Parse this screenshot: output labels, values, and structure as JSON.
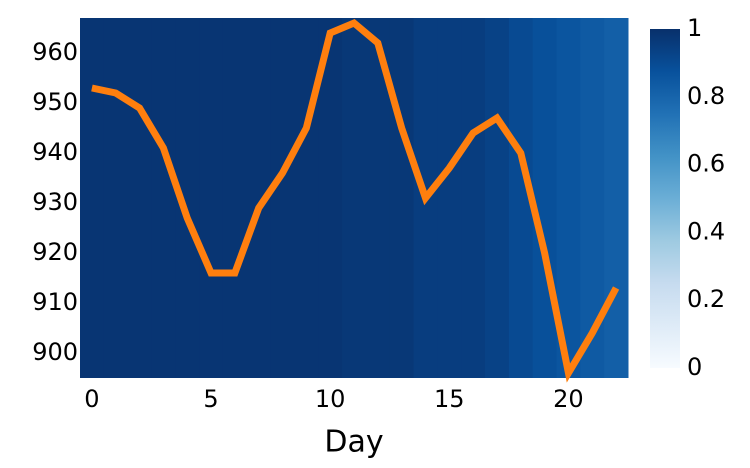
{
  "chart_data": {
    "type": "line",
    "x_label": "Day",
    "x": [
      0,
      1,
      2,
      3,
      4,
      5,
      6,
      7,
      8,
      9,
      10,
      11,
      12,
      13,
      14,
      15,
      16,
      17,
      18,
      19,
      20,
      21,
      22
    ],
    "series": [
      {
        "color": "#ff7f0e",
        "values": [
          953,
          952,
          949,
          941,
          927,
          916,
          916,
          929,
          936,
          945,
          964,
          966,
          962,
          945,
          931,
          937,
          944,
          947,
          940,
          920,
          896,
          904,
          913
        ]
      }
    ],
    "heatmap_values": [
      0.98,
      0.98,
      0.98,
      0.98,
      0.98,
      0.98,
      0.98,
      0.98,
      0.98,
      0.98,
      0.98,
      0.97,
      0.97,
      0.97,
      0.95,
      0.95,
      0.95,
      0.93,
      0.9,
      0.88,
      0.86,
      0.84,
      0.82
    ],
    "colormap": [
      "#f7fbff",
      "#deebf7",
      "#c6dbef",
      "#9ecae1",
      "#6baed6",
      "#4292c6",
      "#2171b5",
      "#08519c",
      "#08306b"
    ],
    "xlim": [
      -0.5,
      22.5
    ],
    "xticks": [
      0,
      5,
      10,
      15,
      20
    ],
    "ylim": [
      895,
      967
    ],
    "yticks": [
      900,
      910,
      920,
      930,
      940,
      950,
      960
    ],
    "colorbar_lim": [
      0,
      1
    ],
    "colorbar_ticks": [
      0,
      0.2,
      0.4,
      0.6,
      0.8,
      1
    ]
  }
}
